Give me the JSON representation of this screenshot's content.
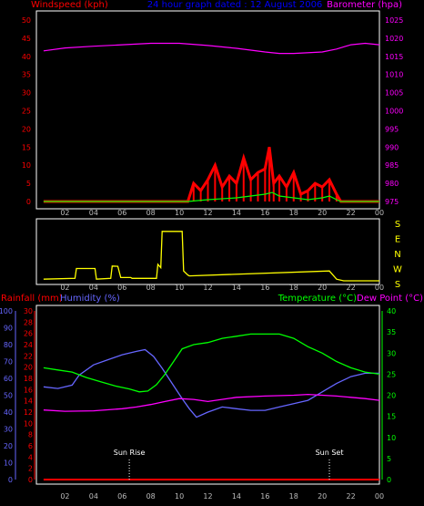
{
  "header": {
    "left_label": "Windspeed (kph)",
    "center_label": "24 hour graph dated : 12 August 2006",
    "right_label": "Barometer (hpa)"
  },
  "colors": {
    "background": "#000000",
    "frame": "#ffffff",
    "wind_gust": "#ff0000",
    "wind_avg": "#00ff00",
    "barometer": "#ff00ff",
    "direction": "#ffff00",
    "rainfall": "#ff0000",
    "humidity": "#6666ff",
    "temperature": "#00ff00",
    "dewpoint": "#ff00ff",
    "title": "#0000ff",
    "axis_tick": "#bbbbbb"
  },
  "x_ticks": [
    "02",
    "04",
    "06",
    "08",
    "10",
    "12",
    "14",
    "16",
    "18",
    "20",
    "22",
    "00"
  ],
  "chart_data": [
    {
      "type": "line",
      "title": "24 hour graph dated : 12 August 2006",
      "xlabel": "",
      "ylabel": "Windspeed (kph)",
      "y2label": "Barometer (hpa)",
      "ylim": [
        0,
        50
      ],
      "y2lim": [
        975,
        1025
      ],
      "yticks": [
        "50",
        "45",
        "40",
        "35",
        "30",
        "25",
        "20",
        "15",
        "10",
        "5",
        "0"
      ],
      "y2ticks": [
        "1025",
        "1020",
        "1015",
        "1010",
        "1005",
        "1000",
        "995",
        "990",
        "985",
        "980",
        "975"
      ],
      "x_hours": [
        0,
        24
      ],
      "series": [
        {
          "name": "Barometer (hpa)",
          "axis": "right",
          "x": [
            0.5,
            2,
            4,
            6,
            8,
            10,
            12,
            14,
            16,
            17,
            18,
            20,
            21,
            22,
            23,
            24
          ],
          "y": [
            1016.5,
            1017.3,
            1017.8,
            1018.2,
            1018.6,
            1018.6,
            1018.0,
            1017.2,
            1016.2,
            1015.8,
            1015.8,
            1016.2,
            1017.0,
            1018.2,
            1018.6,
            1018.2
          ]
        },
        {
          "name": "Windspeed gust",
          "axis": "left",
          "x": [
            0.5,
            10.6,
            11.0,
            11.5,
            12.0,
            12.5,
            13.0,
            13.5,
            14.0,
            14.5,
            15.0,
            15.5,
            16.0,
            16.3,
            16.6,
            17.0,
            17.5,
            18.0,
            18.5,
            19.0,
            19.5,
            20.0,
            20.5,
            21.0,
            21.3,
            21.6,
            24
          ],
          "y": [
            0,
            0,
            5,
            3,
            6,
            10,
            4,
            7,
            5,
            12,
            6,
            8,
            9,
            15,
            5,
            7,
            4,
            8,
            2,
            3,
            5,
            4,
            6,
            2,
            0,
            0,
            0
          ]
        },
        {
          "name": "Windspeed average",
          "axis": "left",
          "x": [
            0.5,
            10.6,
            12,
            14,
            15,
            16,
            16.5,
            17,
            18,
            19,
            20,
            20.5,
            21,
            21.3,
            24
          ],
          "y": [
            0,
            0,
            0.5,
            1.0,
            1.5,
            2.0,
            2.5,
            1.5,
            1.0,
            0.5,
            1.0,
            1.5,
            0.5,
            0,
            0
          ]
        }
      ]
    },
    {
      "type": "line",
      "title": "",
      "ylabel": "",
      "yticks": [
        "S",
        "E",
        "N",
        "W",
        "S"
      ],
      "ylim": [
        0,
        360
      ],
      "series": [
        {
          "name": "Wind direction",
          "x": [
            0.5,
            2.7,
            2.8,
            4.1,
            4.2,
            5.2,
            5.3,
            5.7,
            5.9,
            6.6,
            6.7,
            8.4,
            8.5,
            8.7,
            8.8,
            10.2,
            10.3,
            10.6,
            10.7,
            20.5,
            21.0,
            21.5,
            22,
            24
          ],
          "y": [
            10,
            15,
            75,
            75,
            10,
            15,
            90,
            88,
            20,
            20,
            15,
            15,
            100,
            80,
            300,
            300,
            60,
            35,
            30,
            60,
            10,
            0,
            0,
            0
          ]
        }
      ]
    },
    {
      "type": "line",
      "title": "",
      "xlabel": "",
      "ylabel": "Rainfall (mm)",
      "y2label": "Humidity (%)",
      "y3label": "Temperature (°C)",
      "y4label": "Dew Point (°C)",
      "ylim": [
        0,
        100
      ],
      "y2lim": [
        0,
        30
      ],
      "y3lim": [
        0,
        40
      ],
      "humidity_ticks": [
        "100",
        "90",
        "80",
        "70",
        "60",
        "50",
        "40",
        "30",
        "20",
        "10",
        "0"
      ],
      "rain_ticks": [
        "30",
        "28",
        "26",
        "24",
        "22",
        "20",
        "18",
        "16",
        "14",
        "12",
        "10",
        "8",
        "6",
        "4",
        "2",
        "0"
      ],
      "temp_ticks": [
        "40",
        "35",
        "30",
        "25",
        "20",
        "15",
        "10",
        "5",
        "0"
      ],
      "annotations": [
        {
          "label": "Sun Rise",
          "hour": 6.5
        },
        {
          "label": "Sun Set",
          "hour": 20.5
        }
      ],
      "series": [
        {
          "name": "Rainfall (mm)",
          "axis": "rain",
          "x": [
            0.5,
            24
          ],
          "y": [
            0,
            0
          ]
        },
        {
          "name": "Humidity (%)",
          "axis": "humidity",
          "x": [
            0.5,
            1.5,
            2.5,
            3.0,
            4.0,
            5.0,
            6.0,
            7.0,
            7.6,
            8.2,
            8.8,
            9.5,
            10.2,
            10.7,
            11.2,
            12.0,
            13.0,
            14.0,
            15.0,
            16.0,
            17.0,
            18.0,
            19.0,
            20.0,
            21.0,
            22.0,
            23.0,
            24.0
          ],
          "y": [
            55,
            54,
            56,
            62,
            68,
            71,
            74,
            76,
            77,
            73,
            66,
            57,
            48,
            42,
            37,
            40,
            43,
            42,
            41,
            41,
            43,
            45,
            47,
            52,
            57,
            61,
            63,
            63
          ]
        },
        {
          "name": "Temperature (°C)",
          "axis": "temperature",
          "x": [
            0.5,
            1.5,
            2.5,
            3.5,
            4.5,
            5.5,
            6.5,
            7.2,
            7.8,
            8.4,
            9.0,
            9.6,
            10.2,
            11,
            12,
            13,
            14,
            15,
            16,
            17,
            18,
            19,
            20,
            21,
            22,
            23,
            24
          ],
          "y": [
            26.5,
            26,
            25.5,
            24.2,
            23.2,
            22.2,
            21.5,
            20.8,
            21,
            22.5,
            25,
            28,
            31,
            32,
            32.5,
            33.5,
            34,
            34.5,
            34.5,
            34.5,
            33.5,
            31.5,
            30,
            28,
            26.5,
            25.5,
            25
          ]
        },
        {
          "name": "Dew Point (°C)",
          "axis": "temperature",
          "x": [
            0.5,
            2,
            4,
            6,
            7,
            8,
            9,
            10,
            11,
            12,
            14,
            16,
            18,
            19,
            20,
            21,
            22,
            23,
            24
          ],
          "y": [
            16.5,
            16.2,
            16.3,
            16.8,
            17.2,
            17.8,
            18.5,
            19.2,
            19.0,
            18.5,
            19.5,
            19.8,
            20.0,
            20.2,
            20.0,
            19.8,
            19.5,
            19.2,
            18.8
          ]
        }
      ]
    }
  ]
}
